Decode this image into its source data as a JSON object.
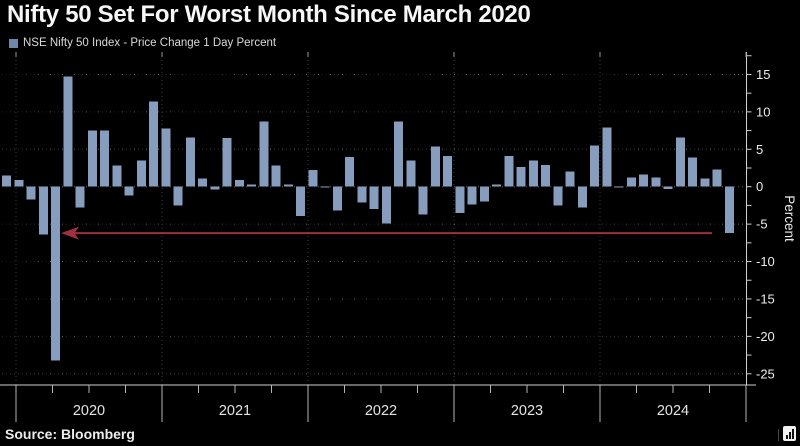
{
  "header": {
    "title": "Nifty 50 Set For Worst Month Since March 2020"
  },
  "legend": {
    "label": "NSE Nifty 50 Index - Price Change 1 Day Percent"
  },
  "footer": {
    "source": "Source: Bloomberg",
    "watermark_icon": "bar-chart-icon"
  },
  "colors": {
    "background": "#000000",
    "bar": "#879dbd",
    "legend_swatch": "#6e88a9",
    "arrow": "#9e3140",
    "axis": "#cfcfcf",
    "grid": "rgba(200,200,200,0.5)",
    "year_grid": "rgba(190,190,190,0.32)",
    "text": "#ececec"
  },
  "chart_data": {
    "type": "bar",
    "title": "Nifty 50 Set For Worst Month Since March 2020",
    "series_name": "NSE Nifty 50 Index - Price Change 1 Day Percent",
    "x": [
      "Nov 2019",
      "Dec 2019",
      "Jan 2020",
      "Feb 2020",
      "Mar 2020",
      "Apr 2020",
      "May 2020",
      "Jun 2020",
      "Jul 2020",
      "Aug 2020",
      "Sep 2020",
      "Oct 2020",
      "Nov 2020",
      "Dec 2020",
      "Jan 2021",
      "Feb 2021",
      "Mar 2021",
      "Apr 2021",
      "May 2021",
      "Jun 2021",
      "Jul 2021",
      "Aug 2021",
      "Sep 2021",
      "Oct 2021",
      "Nov 2021",
      "Dec 2021",
      "Jan 2022",
      "Feb 2022",
      "Mar 2022",
      "Apr 2022",
      "May 2022",
      "Jun 2022",
      "Jul 2022",
      "Aug 2022",
      "Sep 2022",
      "Oct 2022",
      "Nov 2022",
      "Dec 2022",
      "Jan 2023",
      "Feb 2023",
      "Mar 2023",
      "Apr 2023",
      "May 2023",
      "Jun 2023",
      "Jul 2023",
      "Aug 2023",
      "Sep 2023",
      "Oct 2023",
      "Nov 2023",
      "Dec 2023",
      "Jan 2024",
      "Feb 2024",
      "Mar 2024",
      "Apr 2024",
      "May 2024",
      "Jun 2024",
      "Jul 2024",
      "Aug 2024",
      "Sep 2024",
      "Oct 2024"
    ],
    "values": [
      1.5,
      0.9,
      -1.7,
      -6.4,
      -23.2,
      14.7,
      -2.8,
      7.5,
      7.5,
      2.8,
      -1.2,
      3.5,
      11.4,
      7.8,
      -2.5,
      6.6,
      1.1,
      -0.4,
      6.5,
      0.9,
      0.3,
      8.7,
      2.8,
      0.3,
      -3.9,
      2.2,
      -0.1,
      -3.2,
      4.0,
      -2.1,
      -3.0,
      -4.9,
      8.7,
      3.5,
      -3.7,
      5.4,
      4.1,
      -3.5,
      -2.4,
      -2.0,
      0.3,
      4.1,
      2.6,
      3.5,
      2.9,
      -2.5,
      2.0,
      -2.8,
      5.5,
      7.9,
      -0.1,
      1.2,
      1.6,
      1.2,
      -0.3,
      6.6,
      3.9,
      1.1,
      2.3,
      -6.2
    ],
    "xlabel": "",
    "ylabel": "Percent",
    "ylim": [
      -26.5,
      18
    ],
    "yticks": [
      15,
      10,
      5,
      0,
      -5,
      -10,
      -15,
      -20,
      -25
    ],
    "minor_ytick_step": 2.5,
    "year_labels": [
      "2020",
      "2021",
      "2022",
      "2023",
      "2024"
    ],
    "grid": true,
    "legend_position": "top-left",
    "y_axis_side": "right",
    "annotation": {
      "type": "arrow",
      "level": -6.2,
      "direction": "left",
      "from_label": "Oct 2024",
      "to_label": "Mar 2020"
    }
  }
}
